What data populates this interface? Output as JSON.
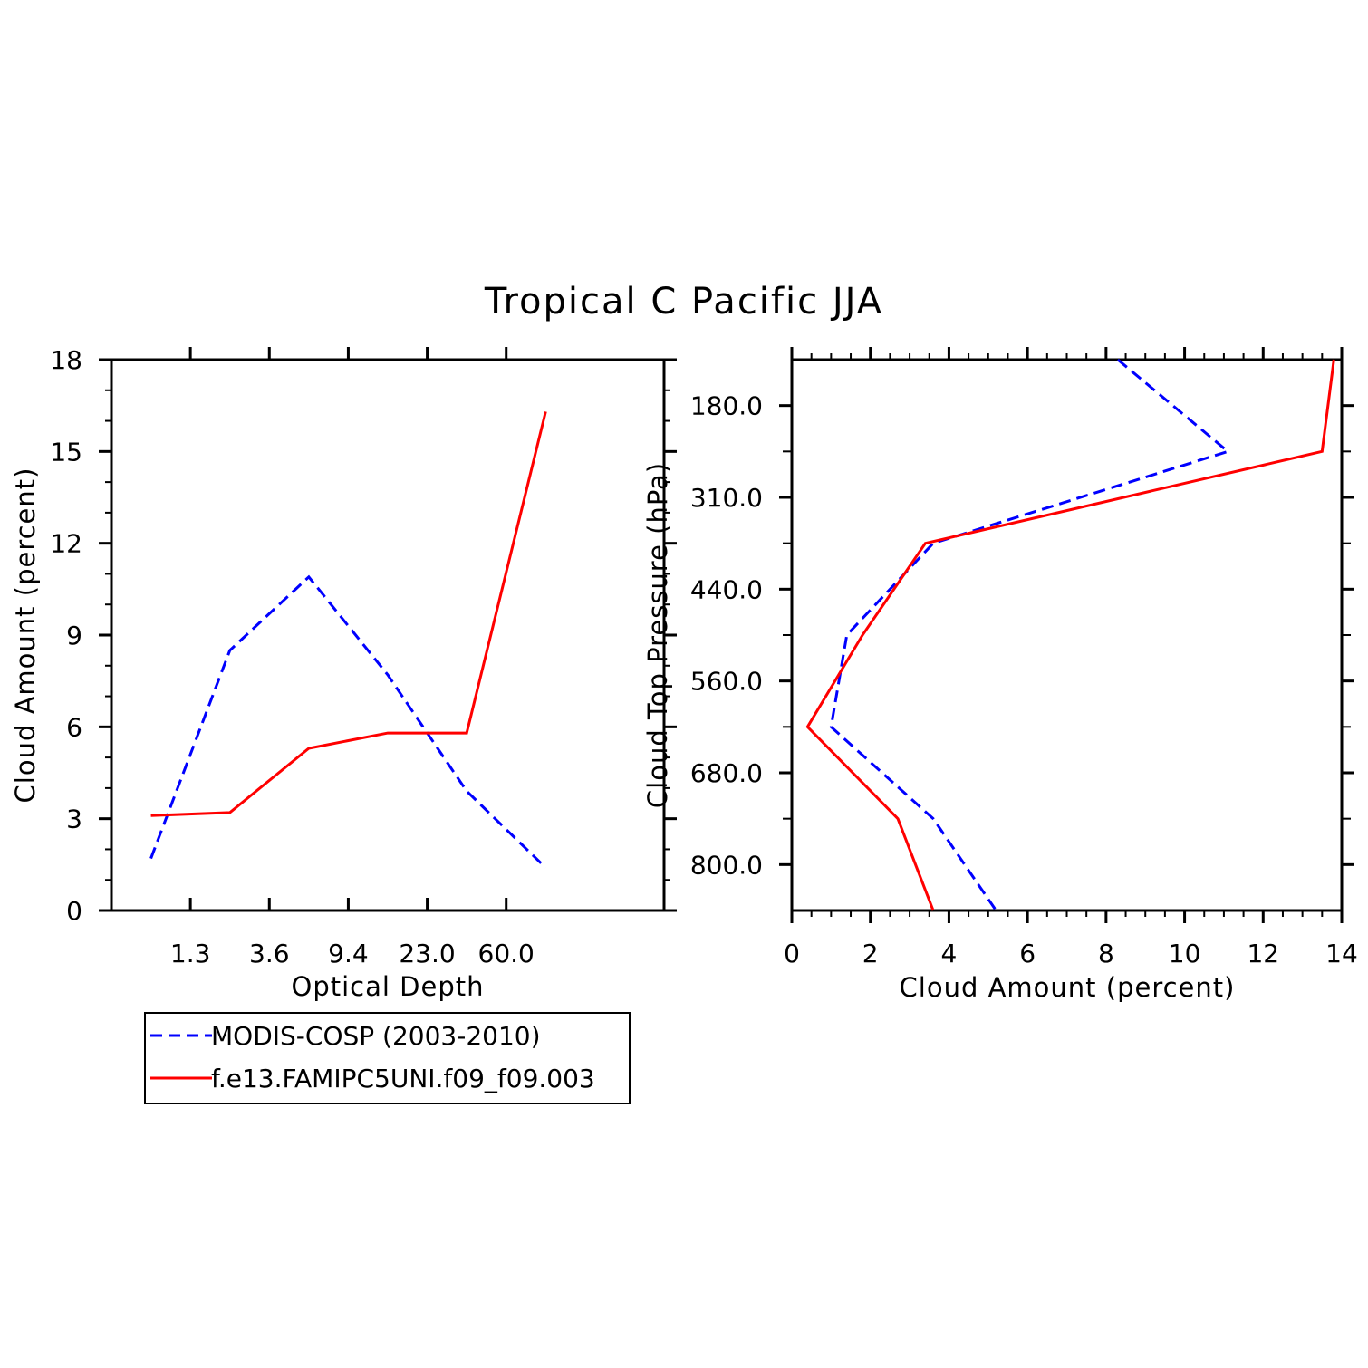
{
  "title": "Tropical C Pacific JJA",
  "colors": {
    "obs": "#0000ff",
    "model": "#ff0000",
    "axes": "#000000"
  },
  "legend": {
    "placement": "below-left",
    "entries": [
      {
        "label": "MODIS-COSP (2003-2010)",
        "style": "dashed",
        "color": "#0000ff"
      },
      {
        "label": "f.e13.FAMIPC5UNI.f09_f09.003",
        "style": "solid",
        "color": "#ff0000"
      }
    ]
  },
  "chart_data": [
    {
      "type": "line",
      "xlabel": "Optical Depth",
      "ylabel": "Cloud Amount (percent)",
      "x_tick_labels": [
        "1.3",
        "3.6",
        "9.4",
        "23.0",
        "60.0"
      ],
      "x_bins": 7,
      "ylim": [
        0,
        18
      ],
      "y_ticks": [
        0,
        3,
        6,
        9,
        12,
        15,
        18
      ],
      "series": [
        {
          "name": "MODIS-COSP (2003-2010)",
          "x_bin": [
            0,
            1,
            2,
            3,
            4,
            5
          ],
          "values": [
            1.7,
            8.5,
            10.9,
            7.7,
            3.9,
            1.4
          ]
        },
        {
          "name": "f.e13.FAMIPC5UNI.f09_f09.003",
          "x_bin": [
            0,
            1,
            2,
            3,
            4,
            5
          ],
          "values": [
            3.1,
            3.2,
            5.3,
            5.8,
            5.8,
            16.3
          ]
        }
      ]
    },
    {
      "type": "line",
      "xlabel": "Cloud Amount (percent)",
      "ylabel": "Cloud Top Pressure (hPa)",
      "xlim": [
        0,
        14
      ],
      "x_ticks": [
        0,
        2,
        4,
        6,
        8,
        10,
        12,
        14
      ],
      "y_tick_labels": [
        "180.0",
        "310.0",
        "440.0",
        "560.0",
        "680.0",
        "800.0"
      ],
      "y_bins": 6,
      "series": [
        {
          "name": "MODIS-COSP (2003-2010)",
          "values": [
            8.3,
            11.1,
            3.6,
            1.4,
            1.0,
            3.6,
            5.2
          ],
          "y_bin": [
            0,
            1,
            2,
            3,
            4,
            5,
            6
          ]
        },
        {
          "name": "f.e13.FAMIPC5UNI.f09_f09.003",
          "values": [
            13.8,
            13.5,
            3.4,
            1.8,
            0.4,
            2.7,
            3.6
          ],
          "y_bin": [
            0,
            1,
            2,
            3,
            4,
            5,
            6
          ]
        }
      ]
    }
  ]
}
